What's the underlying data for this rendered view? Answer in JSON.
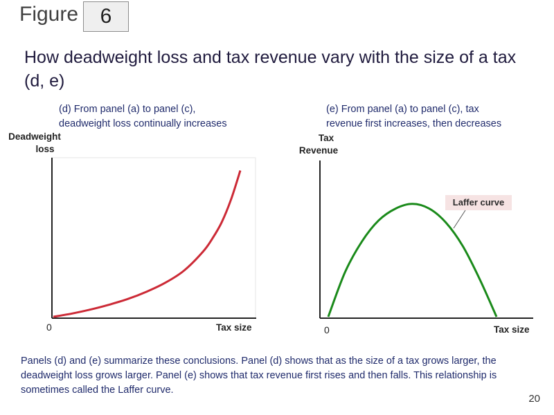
{
  "figure": {
    "word": "Figure",
    "number": "6",
    "page_number": "20"
  },
  "title": "How deadweight loss and tax revenue vary with the size of a tax (d, e)",
  "caption": "Panels (d) and (e) summarize these conclusions. Panel (d) shows that as the size of a tax grows larger, the deadweight loss grows larger. Panel (e) shows that tax revenue first rises and then falls. This relationship is sometimes called the Laffer curve.",
  "colors": {
    "curve": "#cc2a36",
    "laffer": "#1a8a1a",
    "axis": "#222222",
    "annotation_bg": "#f6e3e3"
  },
  "panel_d": {
    "subtitle_line1": "(d) From panel (a) to panel (c),",
    "subtitle_line2": "deadweight loss continually increases",
    "ylabel_line1": "Deadweight",
    "ylabel_line2": "loss",
    "xlabel": "Tax size",
    "origin": "0"
  },
  "panel_e": {
    "subtitle_line1": "(e) From panel (a) to panel (c), tax",
    "subtitle_line2": "revenue first increases, then decreases",
    "ylabel_line1": "Tax",
    "ylabel_line2": "Revenue",
    "xlabel": "Tax size",
    "origin": "0",
    "annotation": "Laffer curve"
  },
  "chart_data": [
    {
      "type": "line",
      "panel": "d",
      "xlabel": "Tax size",
      "ylabel": "Deadweight loss",
      "xlim": [
        0,
        1
      ],
      "ylim": [
        0,
        1
      ],
      "grid": false,
      "series": [
        {
          "x": [
            0,
            0.1,
            0.2,
            0.3,
            0.4,
            0.5,
            0.6,
            0.7,
            0.8,
            0.85,
            0.9,
            0.95,
            1.0
          ],
          "values": [
            0,
            0.02,
            0.045,
            0.075,
            0.11,
            0.155,
            0.21,
            0.285,
            0.4,
            0.48,
            0.58,
            0.72,
            0.9
          ]
        }
      ]
    },
    {
      "type": "line",
      "panel": "e",
      "xlabel": "Tax size",
      "ylabel": "Tax Revenue",
      "xlim": [
        0,
        1
      ],
      "ylim": [
        0,
        1
      ],
      "grid": false,
      "annotation": "Laffer curve",
      "series": [
        {
          "x": [
            0,
            0.1,
            0.2,
            0.3,
            0.4,
            0.5,
            0.6,
            0.7,
            0.8,
            0.9,
            1.0
          ],
          "values": [
            0,
            0.38,
            0.64,
            0.82,
            0.92,
            0.96,
            0.92,
            0.8,
            0.6,
            0.32,
            0
          ]
        }
      ]
    }
  ]
}
